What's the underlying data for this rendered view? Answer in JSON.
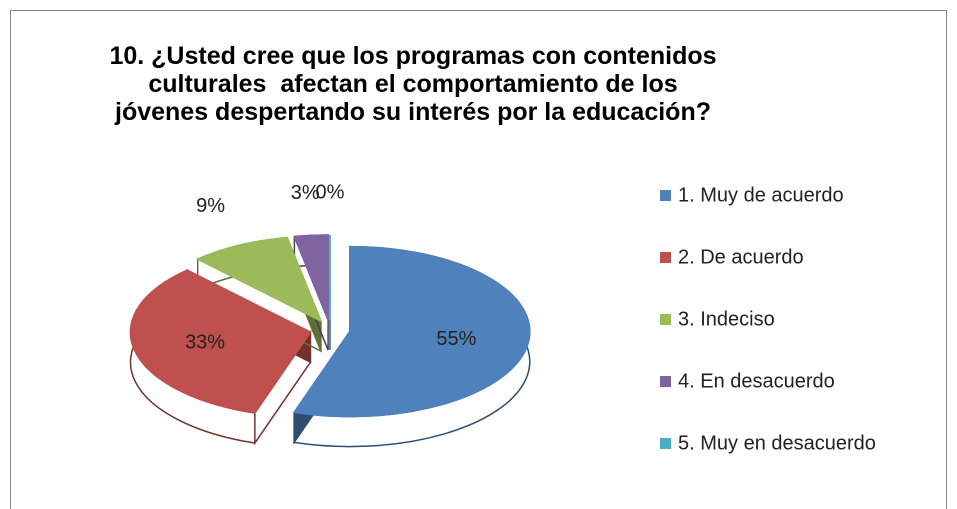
{
  "chart_data": {
    "type": "pie3d",
    "title": "10. ¿Usted cree que los programas con contenidos culturales  afectan el comportamiento de los jóvenes despertando su interés por la educación?",
    "categories": [
      "1. Muy de acuerdo",
      "2. De acuerdo",
      "3. Indeciso",
      "4. En desacuerdo",
      "5. Muy en desacuerdo"
    ],
    "values": [
      55,
      33,
      9,
      3,
      0
    ],
    "value_labels": [
      "55%",
      "33%",
      "9%",
      "3%",
      "0%"
    ],
    "colors": [
      "#4f81bd",
      "#c0504d",
      "#9bbb59",
      "#8064a2",
      "#4bacc6"
    ],
    "legend": "right"
  }
}
